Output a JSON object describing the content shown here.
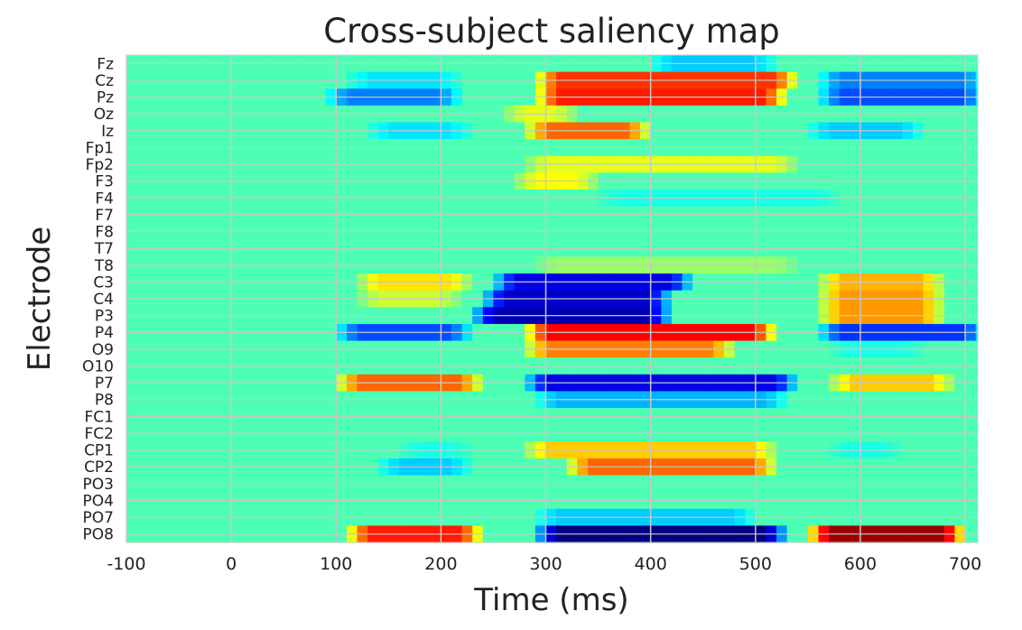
{
  "chart_data": {
    "type": "heatmap",
    "title": "Cross-subject saliency map",
    "xlabel": "Time (ms)",
    "ylabel": "Electrode",
    "xlim": [
      -100,
      712
    ],
    "xticks": [
      -100,
      0,
      100,
      200,
      300,
      400,
      500,
      600,
      700
    ],
    "grid": true,
    "colormap": "jet",
    "vlim": [
      -1,
      1
    ],
    "neutral_value": -0.1,
    "electrodes": [
      "Fz",
      "Cz",
      "Pz",
      "Oz",
      "Iz",
      "Fp1",
      "Fp2",
      "F3",
      "F4",
      "F7",
      "F8",
      "T7",
      "T8",
      "C3",
      "C4",
      "P3",
      "P4",
      "O9",
      "O10",
      "P7",
      "P8",
      "FC1",
      "FC2",
      "CP1",
      "CP2",
      "PO3",
      "PO4",
      "PO7",
      "PO8"
    ],
    "blobs": [
      {
        "electrode": "Fz",
        "start": 420,
        "end": 500,
        "value": -0.35
      },
      {
        "electrode": "Cz",
        "start": 130,
        "end": 200,
        "value": -0.3
      },
      {
        "electrode": "Cz",
        "start": 310,
        "end": 520,
        "value": 0.65
      },
      {
        "electrode": "Cz",
        "start": 580,
        "end": 700,
        "value": -0.5
      },
      {
        "electrode": "Pz",
        "start": 110,
        "end": 200,
        "value": -0.5
      },
      {
        "electrode": "Pz",
        "start": 310,
        "end": 510,
        "value": 0.7
      },
      {
        "electrode": "Pz",
        "start": 580,
        "end": 700,
        "value": -0.6
      },
      {
        "electrode": "Oz",
        "start": 280,
        "end": 310,
        "value": 0.2
      },
      {
        "electrode": "Iz",
        "start": 150,
        "end": 210,
        "value": -0.3
      },
      {
        "electrode": "Iz",
        "start": 300,
        "end": 380,
        "value": 0.55
      },
      {
        "electrode": "Iz",
        "start": 570,
        "end": 640,
        "value": -0.35
      },
      {
        "electrode": "Fp2",
        "start": 300,
        "end": 520,
        "value": 0.2
      },
      {
        "electrode": "F3",
        "start": 290,
        "end": 330,
        "value": 0.25
      },
      {
        "electrode": "F4",
        "start": 370,
        "end": 560,
        "value": -0.2
      },
      {
        "electrode": "T8",
        "start": 310,
        "end": 520,
        "value": 0.05
      },
      {
        "electrode": "C3",
        "start": 140,
        "end": 210,
        "value": 0.3
      },
      {
        "electrode": "C3",
        "start": 270,
        "end": 420,
        "value": -0.8
      },
      {
        "electrode": "C3",
        "start": 580,
        "end": 660,
        "value": 0.4
      },
      {
        "electrode": "C4",
        "start": 140,
        "end": 200,
        "value": 0.15
      },
      {
        "electrode": "C4",
        "start": 260,
        "end": 400,
        "value": -0.85
      },
      {
        "electrode": "C4",
        "start": 580,
        "end": 660,
        "value": 0.45
      },
      {
        "electrode": "P3",
        "start": 250,
        "end": 400,
        "value": -0.9
      },
      {
        "electrode": "P3",
        "start": 580,
        "end": 660,
        "value": 0.45
      },
      {
        "electrode": "P4",
        "start": 120,
        "end": 210,
        "value": -0.6
      },
      {
        "electrode": "P4",
        "start": 300,
        "end": 500,
        "value": 0.75
      },
      {
        "electrode": "P4",
        "start": 580,
        "end": 700,
        "value": -0.65
      },
      {
        "electrode": "O9",
        "start": 300,
        "end": 460,
        "value": 0.5
      },
      {
        "electrode": "O9",
        "start": 590,
        "end": 640,
        "value": -0.2
      },
      {
        "electrode": "P7",
        "start": 120,
        "end": 220,
        "value": 0.55
      },
      {
        "electrode": "P7",
        "start": 300,
        "end": 520,
        "value": -0.8
      },
      {
        "electrode": "P7",
        "start": 590,
        "end": 670,
        "value": 0.35
      },
      {
        "electrode": "P8",
        "start": 310,
        "end": 510,
        "value": -0.4
      },
      {
        "electrode": "CP1",
        "start": 180,
        "end": 210,
        "value": -0.2
      },
      {
        "electrode": "CP1",
        "start": 300,
        "end": 500,
        "value": 0.35
      },
      {
        "electrode": "CP1",
        "start": 590,
        "end": 620,
        "value": -0.2
      },
      {
        "electrode": "CP2",
        "start": 160,
        "end": 210,
        "value": -0.35
      },
      {
        "electrode": "CP2",
        "start": 340,
        "end": 500,
        "value": 0.55
      },
      {
        "electrode": "PO7",
        "start": 310,
        "end": 480,
        "value": -0.35
      },
      {
        "electrode": "PO8",
        "start": 130,
        "end": 220,
        "value": 0.7
      },
      {
        "electrode": "PO8",
        "start": 310,
        "end": 510,
        "value": -1.0
      },
      {
        "electrode": "PO8",
        "start": 570,
        "end": 680,
        "value": 0.95
      }
    ]
  }
}
